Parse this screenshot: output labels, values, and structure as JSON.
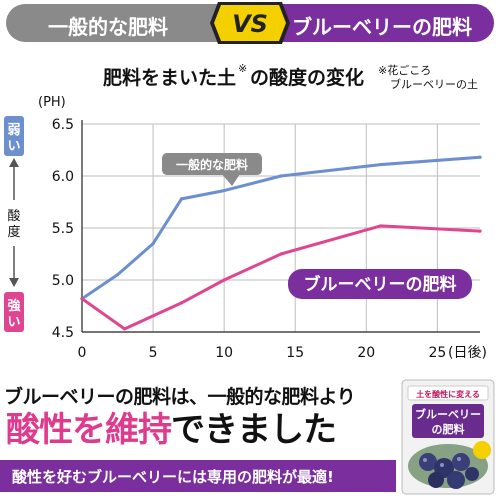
{
  "banner": {
    "left_label": "一般的な肥料",
    "vs_label": "VS",
    "right_label": "ブルーベリーの肥料"
  },
  "chart_data": {
    "type": "line",
    "title": "肥料をまいた土",
    "title_mark": "※",
    "title_suffix": "の酸度の変化",
    "footnote_line1": "※花ごころ",
    "footnote_line2": "ブルーベリーの土",
    "ylabel": "(PH)",
    "xlabel": "(日後)",
    "xlim": [
      0,
      28
    ],
    "ylim": [
      4.5,
      6.5
    ],
    "x_ticks": [
      0,
      5,
      10,
      15,
      20,
      25
    ],
    "y_ticks": [
      4.5,
      5.0,
      5.5,
      6.0,
      6.5
    ],
    "y_tick_labels": [
      "4.5",
      "5.0",
      "5.5",
      "6.0",
      "6.5"
    ],
    "side_label_top": "弱い",
    "side_label_mid": "酸度",
    "side_label_bottom": "強い",
    "series": [
      {
        "name": "一般的な肥料",
        "color": "#6b8fcf",
        "x": [
          0,
          2.5,
          5,
          7,
          10,
          14,
          21,
          28
        ],
        "y": [
          4.82,
          5.05,
          5.35,
          5.78,
          5.86,
          6.0,
          6.11,
          6.18
        ]
      },
      {
        "name": "ブルーベリーの肥料",
        "color": "#e0468f",
        "x": [
          0,
          3,
          7,
          10,
          14,
          21,
          28
        ],
        "y": [
          4.82,
          4.53,
          4.78,
          5.0,
          5.25,
          5.52,
          5.47
        ]
      }
    ],
    "grid": true
  },
  "bottom": {
    "line1": "ブルーベリーの肥料は、一般的な肥料より",
    "line2_accent": "酸性を維持",
    "line2_rest": "できました",
    "bar_text": "酸性を好むブルーベリーには専用の肥料が最適!"
  },
  "product": {
    "top_text": "土を酸性に変える",
    "name_line1": "ブルーベリー",
    "name_line2": "の肥料",
    "colors": {
      "bag": "#f2f2f2",
      "label": "#6a2b8e",
      "berries": "#3a3f7a"
    }
  }
}
